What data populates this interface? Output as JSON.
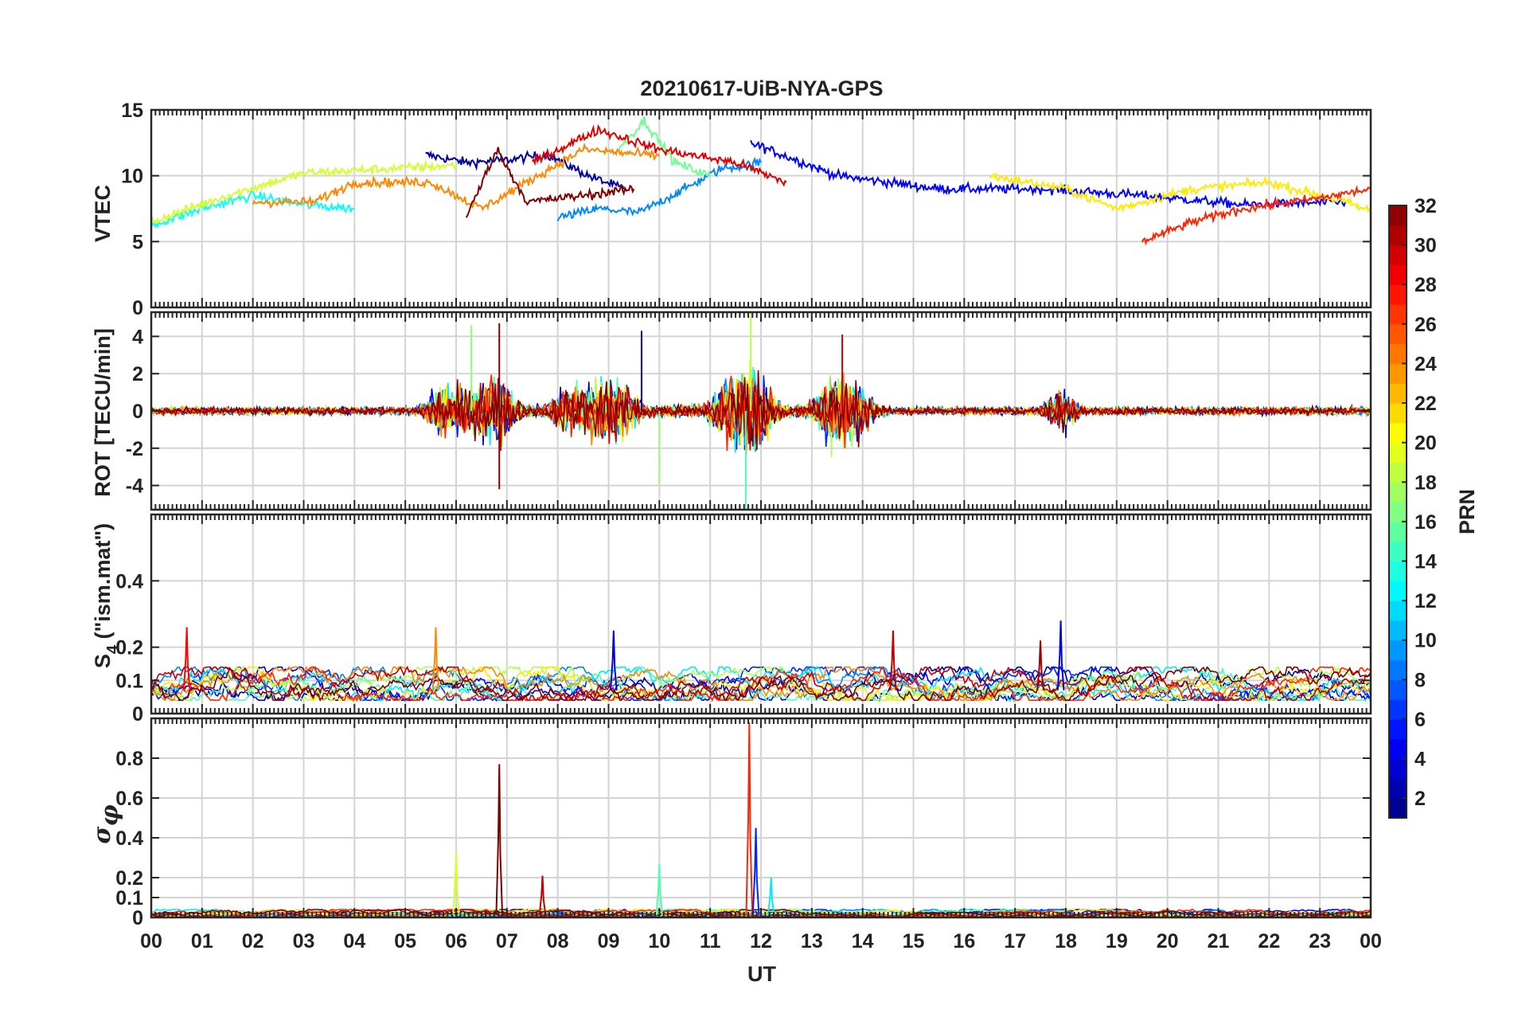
{
  "chart_data": {
    "type": "line",
    "title": "20210617-UiB-NYA-GPS",
    "xlabel": "UT",
    "x_ticks": [
      "00",
      "01",
      "02",
      "03",
      "04",
      "05",
      "06",
      "07",
      "08",
      "09",
      "10",
      "11",
      "12",
      "13",
      "14",
      "15",
      "16",
      "17",
      "18",
      "19",
      "20",
      "21",
      "22",
      "23",
      "00"
    ],
    "xlim": [
      0,
      24
    ],
    "grid": true,
    "panels": [
      {
        "name": "vtec",
        "ylabel": "VTEC",
        "ylim": [
          0,
          15
        ],
        "y_ticks": [
          0,
          5,
          10,
          15
        ],
        "approx_series": [
          {
            "prn": 2,
            "x": [
              5.4,
              6.2,
              7.0,
              7.8,
              8.6,
              9.3
            ],
            "y": [
              11.6,
              11.0,
              11.2,
              11.6,
              10.0,
              9.0
            ]
          },
          {
            "prn": 5,
            "x": [
              11.8,
              13.5,
              15.5,
              17.5,
              19.5,
              21.5,
              23.5
            ],
            "y": [
              12.5,
              10.0,
              9.0,
              9.0,
              8.5,
              7.8,
              8.0
            ]
          },
          {
            "prn": 9,
            "x": [
              8.0,
              8.8,
              9.6,
              10.4,
              11.2,
              12.0
            ],
            "y": [
              6.8,
              7.5,
              7.2,
              8.8,
              10.5,
              11.0
            ]
          },
          {
            "prn": 13,
            "x": [
              0.0,
              1.0,
              2.0,
              3.0,
              4.0
            ],
            "y": [
              6.2,
              7.5,
              8.5,
              7.8,
              7.5
            ]
          },
          {
            "prn": 16,
            "x": [
              9.2,
              9.7,
              10.3,
              11.0
            ],
            "y": [
              12.0,
              14.2,
              11.0,
              10.0
            ]
          },
          {
            "prn": 19,
            "x": [
              0.0,
              1.5,
              3.0,
              4.5,
              6.0
            ],
            "y": [
              6.5,
              8.5,
              10.2,
              10.5,
              10.8
            ]
          },
          {
            "prn": 21,
            "x": [
              16.5,
              18.0,
              19.0,
              20.5,
              22.0,
              23.5,
              24.0
            ],
            "y": [
              10.0,
              9.0,
              7.5,
              9.0,
              9.5,
              8.0,
              7.3
            ]
          },
          {
            "prn": 24,
            "x": [
              2.0,
              3.2,
              4.0,
              5.5,
              6.5,
              8.5,
              10.0
            ],
            "y": [
              8.0,
              8.0,
              9.5,
              9.5,
              7.5,
              12.0,
              11.5
            ]
          },
          {
            "prn": 27,
            "x": [
              19.5,
              20.5,
              21.5,
              23.0,
              24.0
            ],
            "y": [
              5.0,
              6.5,
              7.5,
              8.3,
              9.0
            ]
          },
          {
            "prn": 29,
            "x": [
              7.5,
              8.8,
              10.0,
              11.5,
              12.5
            ],
            "y": [
              11.0,
              13.5,
              12.0,
              11.0,
              9.5
            ]
          },
          {
            "prn": 32,
            "x": [
              6.2,
              6.8,
              7.4,
              8.5,
              9.5
            ],
            "y": [
              6.8,
              12.0,
              8.0,
              8.5,
              9.0
            ]
          }
        ]
      },
      {
        "name": "rot",
        "ylabel": "ROT [TECU/min]",
        "ylim": [
          -5.3,
          5.3
        ],
        "y_ticks": [
          -4,
          -2,
          0,
          2,
          4
        ],
        "burst_hours": [
          5.7,
          6.2,
          6.7,
          6.9,
          8.2,
          8.7,
          9.0,
          9.3,
          11.3,
          11.6,
          11.8,
          12.0,
          13.3,
          13.6,
          13.9,
          17.9
        ],
        "peak_values": [
          {
            "x": 6.3,
            "y": 4.6,
            "prn": 17
          },
          {
            "x": 6.85,
            "y": 4.7,
            "prn": 32
          },
          {
            "x": 6.85,
            "y": -4.2,
            "prn": 32
          },
          {
            "x": 9.65,
            "y": 4.3,
            "prn": 3
          },
          {
            "x": 10.0,
            "y": -3.9,
            "prn": 17
          },
          {
            "x": 11.8,
            "y": 5.3,
            "prn": 18
          },
          {
            "x": 11.7,
            "y": -5.3,
            "prn": 15
          },
          {
            "x": 13.6,
            "y": 4.1,
            "prn": 30
          }
        ]
      },
      {
        "name": "s4",
        "ylabel": "S4 (\"ism.mat\")",
        "ylabel_main": "S",
        "ylabel_sub": "4",
        "ylabel_rest": " (\"ism.mat\")",
        "ylim": [
          0,
          0.6
        ],
        "y_ticks": [
          0,
          0.1,
          0.2,
          0.4
        ],
        "y_tick_labels": [
          "0",
          "0.1",
          "0.2",
          "0.4"
        ],
        "baseline_range": [
          0.04,
          0.14
        ],
        "peak_values": [
          {
            "x": 0.7,
            "y": 0.26,
            "prn": 28
          },
          {
            "x": 5.6,
            "y": 0.26,
            "prn": 24
          },
          {
            "x": 9.1,
            "y": 0.25,
            "prn": 4
          },
          {
            "x": 14.6,
            "y": 0.25,
            "prn": 30
          },
          {
            "x": 17.9,
            "y": 0.28,
            "prn": 4
          },
          {
            "x": 17.5,
            "y": 0.22,
            "prn": 31
          }
        ]
      },
      {
        "name": "sigma_phi",
        "ylabel": "σφ",
        "ylabel_main": "σ",
        "ylabel_sub": "φ",
        "ylim": [
          0,
          1.0
        ],
        "y_ticks": [
          0,
          0.1,
          0.2,
          0.4,
          0.6,
          0.8
        ],
        "y_tick_labels": [
          "0",
          "0.1",
          "0.2",
          "0.4",
          "0.6",
          "0.8"
        ],
        "baseline_range": [
          0.0,
          0.04
        ],
        "peak_values": [
          {
            "x": 6.0,
            "y": 0.33,
            "prn": 19
          },
          {
            "x": 6.85,
            "y": 0.77,
            "prn": 32
          },
          {
            "x": 7.7,
            "y": 0.21,
            "prn": 30
          },
          {
            "x": 10.0,
            "y": 0.27,
            "prn": 15
          },
          {
            "x": 11.77,
            "y": 0.98,
            "prn": 27
          },
          {
            "x": 11.9,
            "y": 0.45,
            "prn": 6
          },
          {
            "x": 12.2,
            "y": 0.2,
            "prn": 12
          }
        ]
      }
    ],
    "colorbar": {
      "label": "PRN",
      "colormap": "jet",
      "range": [
        1,
        32
      ],
      "ticks": [
        2,
        4,
        6,
        8,
        10,
        12,
        14,
        16,
        18,
        20,
        22,
        24,
        26,
        28,
        30,
        32
      ]
    }
  }
}
